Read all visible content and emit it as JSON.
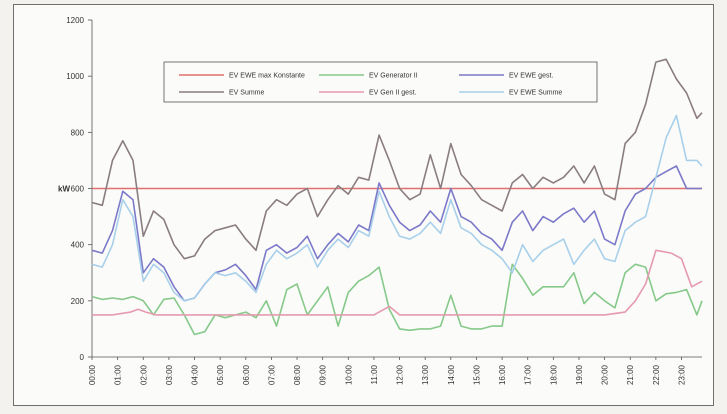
{
  "chart_data": {
    "type": "line",
    "title": "",
    "xlabel": "",
    "ylabel": "kW",
    "ylim": [
      0,
      1200
    ],
    "yticks": [
      0,
      200,
      400,
      600,
      800,
      1000,
      1200
    ],
    "x_tick_labels": [
      "00:00",
      "01:00",
      "02:00",
      "03:00",
      "04:00",
      "05:00",
      "06:00",
      "07:00",
      "08:00",
      "09:00",
      "10:00",
      "11:00",
      "12:00",
      "13:00",
      "14:00",
      "15:00",
      "16:00",
      "17:00",
      "18:00",
      "19:00",
      "20:00",
      "21:00",
      "22:00",
      "23:00"
    ],
    "x_tick_positions": [
      0,
      1,
      2,
      3,
      4,
      5,
      6,
      7,
      8,
      9,
      10,
      11,
      12,
      13,
      14,
      15,
      16,
      17,
      18,
      19,
      20,
      21,
      22,
      23
    ],
    "x_range": [
      0,
      23.8
    ],
    "grid": false,
    "legend_position": "top-center",
    "series": [
      {
        "name": "EV EWE max Konstante",
        "color": "#e06f6f",
        "x": [
          0,
          23.8
        ],
        "values": [
          600,
          600
        ]
      },
      {
        "name": "EV Generator II",
        "color": "#86c98a",
        "x": [
          0,
          0.4,
          0.8,
          1.2,
          1.6,
          2.0,
          2.4,
          2.8,
          3.2,
          3.6,
          4.0,
          4.4,
          4.8,
          5.2,
          5.6,
          6.0,
          6.4,
          6.8,
          7.2,
          7.6,
          8.0,
          8.4,
          8.8,
          9.2,
          9.6,
          10.0,
          10.4,
          10.8,
          11.2,
          11.6,
          12.0,
          12.4,
          12.8,
          13.2,
          13.6,
          14.0,
          14.4,
          14.8,
          15.2,
          15.6,
          16.0,
          16.4,
          16.8,
          17.2,
          17.6,
          18.0,
          18.4,
          18.8,
          19.2,
          19.6,
          20.0,
          20.4,
          20.8,
          21.2,
          21.6,
          22.0,
          22.4,
          22.8,
          23.2,
          23.6,
          23.8
        ],
        "values": [
          215,
          205,
          210,
          205,
          215,
          200,
          150,
          205,
          210,
          150,
          80,
          90,
          150,
          140,
          150,
          160,
          140,
          200,
          110,
          240,
          260,
          150,
          200,
          250,
          110,
          230,
          270,
          290,
          320,
          170,
          100,
          95,
          100,
          100,
          110,
          220,
          110,
          100,
          100,
          110,
          110,
          330,
          280,
          220,
          250,
          250,
          250,
          300,
          190,
          230,
          200,
          175,
          300,
          330,
          320,
          200,
          225,
          230,
          240,
          150,
          200
        ]
      },
      {
        "name": "EV EWE gest.",
        "color": "#7b79c8",
        "x": [
          0,
          0.4,
          0.8,
          1.2,
          1.6,
          2.0,
          2.4,
          2.8,
          3.2,
          3.6,
          4.0,
          4.4,
          4.8,
          5.2,
          5.6,
          6.0,
          6.4,
          6.8,
          7.2,
          7.6,
          8.0,
          8.4,
          8.8,
          9.2,
          9.6,
          10.0,
          10.4,
          10.8,
          11.2,
          11.6,
          12.0,
          12.4,
          12.8,
          13.2,
          13.6,
          14.0,
          14.4,
          14.8,
          15.2,
          15.6,
          16.0,
          16.4,
          16.8,
          17.2,
          17.6,
          18.0,
          18.4,
          18.8,
          19.2,
          19.6,
          20.0,
          20.4,
          20.8,
          21.2,
          21.6,
          22.0,
          22.4,
          22.8,
          23.2,
          23.6,
          23.8
        ],
        "values": [
          380,
          370,
          450,
          590,
          560,
          300,
          350,
          320,
          250,
          200,
          210,
          260,
          300,
          310,
          330,
          290,
          240,
          380,
          400,
          370,
          390,
          430,
          350,
          400,
          440,
          410,
          470,
          450,
          620,
          540,
          480,
          450,
          470,
          520,
          480,
          600,
          500,
          480,
          440,
          420,
          380,
          480,
          520,
          450,
          500,
          480,
          510,
          530,
          480,
          520,
          420,
          400,
          520,
          580,
          600,
          640,
          660,
          680,
          600,
          600,
          600
        ]
      },
      {
        "name": "EV Summe",
        "color": "#8a7d80",
        "x": [
          0,
          0.4,
          0.8,
          1.2,
          1.6,
          2.0,
          2.4,
          2.8,
          3.2,
          3.6,
          4.0,
          4.4,
          4.8,
          5.2,
          5.6,
          6.0,
          6.4,
          6.8,
          7.2,
          7.6,
          8.0,
          8.4,
          8.8,
          9.2,
          9.6,
          10.0,
          10.4,
          10.8,
          11.2,
          11.6,
          12.0,
          12.4,
          12.8,
          13.2,
          13.6,
          14.0,
          14.4,
          14.8,
          15.2,
          15.6,
          16.0,
          16.4,
          16.8,
          17.2,
          17.6,
          18.0,
          18.4,
          18.8,
          19.2,
          19.6,
          20.0,
          20.4,
          20.8,
          21.2,
          21.6,
          22.0,
          22.4,
          22.8,
          23.2,
          23.6,
          23.8
        ],
        "values": [
          550,
          540,
          700,
          770,
          700,
          430,
          520,
          490,
          400,
          350,
          360,
          420,
          450,
          460,
          470,
          420,
          380,
          520,
          560,
          540,
          580,
          600,
          500,
          560,
          610,
          580,
          640,
          630,
          790,
          700,
          600,
          560,
          580,
          720,
          600,
          760,
          650,
          610,
          560,
          540,
          520,
          620,
          650,
          600,
          640,
          620,
          640,
          680,
          620,
          680,
          580,
          560,
          760,
          800,
          900,
          1050,
          1060,
          990,
          940,
          850,
          870
        ]
      },
      {
        "name": "EV Gen II gest.",
        "color": "#e59ab0",
        "x": [
          0,
          0.8,
          1.5,
          1.8,
          2.1,
          2.5,
          3.0,
          4.0,
          5.0,
          6.0,
          7.0,
          8.0,
          9.0,
          10.0,
          11.0,
          11.6,
          12.0,
          13.0,
          14.0,
          15.0,
          16.0,
          17.0,
          18.0,
          19.0,
          20.0,
          20.8,
          21.2,
          21.6,
          22.0,
          22.6,
          23.0,
          23.4,
          23.8
        ],
        "values": [
          150,
          150,
          160,
          170,
          160,
          150,
          150,
          150,
          150,
          150,
          150,
          150,
          150,
          150,
          150,
          180,
          150,
          150,
          150,
          150,
          150,
          150,
          150,
          150,
          150,
          160,
          200,
          260,
          380,
          370,
          350,
          250,
          270
        ]
      },
      {
        "name": "EV EWE Summe",
        "color": "#a8d0ea",
        "x": [
          0,
          0.4,
          0.8,
          1.2,
          1.6,
          2.0,
          2.4,
          2.8,
          3.2,
          3.6,
          4.0,
          4.4,
          4.8,
          5.2,
          5.6,
          6.0,
          6.4,
          6.8,
          7.2,
          7.6,
          8.0,
          8.4,
          8.8,
          9.2,
          9.6,
          10.0,
          10.4,
          10.8,
          11.2,
          11.6,
          12.0,
          12.4,
          12.8,
          13.2,
          13.6,
          14.0,
          14.4,
          14.8,
          15.2,
          15.6,
          16.0,
          16.4,
          16.8,
          17.2,
          17.6,
          18.0,
          18.4,
          18.8,
          19.2,
          19.6,
          20.0,
          20.4,
          20.8,
          21.2,
          21.6,
          22.0,
          22.4,
          22.8,
          23.2,
          23.6,
          23.8
        ],
        "values": [
          330,
          320,
          400,
          560,
          500,
          270,
          330,
          300,
          230,
          200,
          210,
          260,
          300,
          290,
          300,
          270,
          230,
          330,
          380,
          350,
          370,
          400,
          320,
          380,
          420,
          390,
          450,
          430,
          590,
          500,
          430,
          420,
          440,
          480,
          440,
          560,
          460,
          440,
          400,
          380,
          350,
          300,
          400,
          340,
          380,
          400,
          420,
          330,
          380,
          420,
          350,
          340,
          450,
          480,
          500,
          640,
          780,
          860,
          700,
          700,
          680
        ]
      }
    ]
  }
}
